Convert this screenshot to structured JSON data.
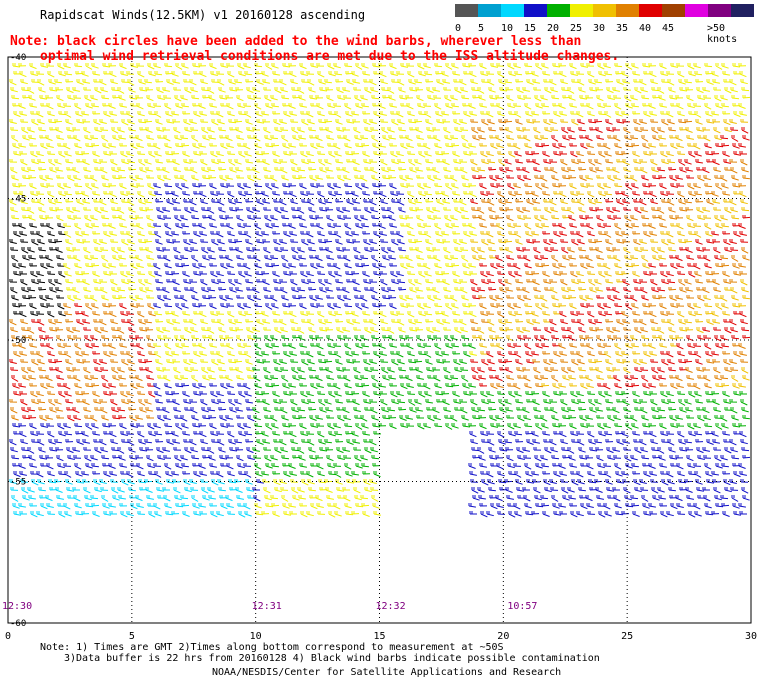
{
  "title": "Rapidscat Winds(12.5KM) v1 20160128 ascending",
  "note": {
    "line1": "Note: black circles have been added to the wind barbs, wherever less than",
    "line2": "optimal wind retrieval conditions are met due to the ISS altitude changes."
  },
  "legend": {
    "colors": [
      "#555555",
      "#00a0d0",
      "#00d8ff",
      "#1010c8",
      "#00b000",
      "#f0f000",
      "#f0c000",
      "#e08000",
      "#e00000",
      "#a04000",
      "#e000e0",
      "#800080",
      "#202060"
    ],
    "labels": [
      "0",
      "5",
      "10",
      "15",
      "20",
      "25",
      "30",
      "35",
      "40",
      "45",
      ">50 knots"
    ]
  },
  "map": {
    "x_ticks": [
      "0",
      "5",
      "10",
      "15",
      "20",
      "25",
      "30"
    ],
    "y_ticks": [
      "-40",
      "-45",
      "-50",
      "-55",
      "-60"
    ],
    "times": [
      {
        "label": "12:30",
        "lon": 0
      },
      {
        "label": "12:31",
        "lon": 10
      },
      {
        "label": "12:32",
        "lon": 15
      },
      {
        "label": "10:57",
        "lon": 20
      }
    ],
    "time_color": "#800080"
  },
  "footer": {
    "line1": "Note: 1) Times are GMT 2)Times along bottom correspond to measurement at ~50S",
    "line2": "3)Data buffer is 22 hrs from 20160128 4) Black wind barbs indicate possible contamination",
    "line3": "NOAA/NESDIS/Center for Satellite Applications and Research"
  }
}
